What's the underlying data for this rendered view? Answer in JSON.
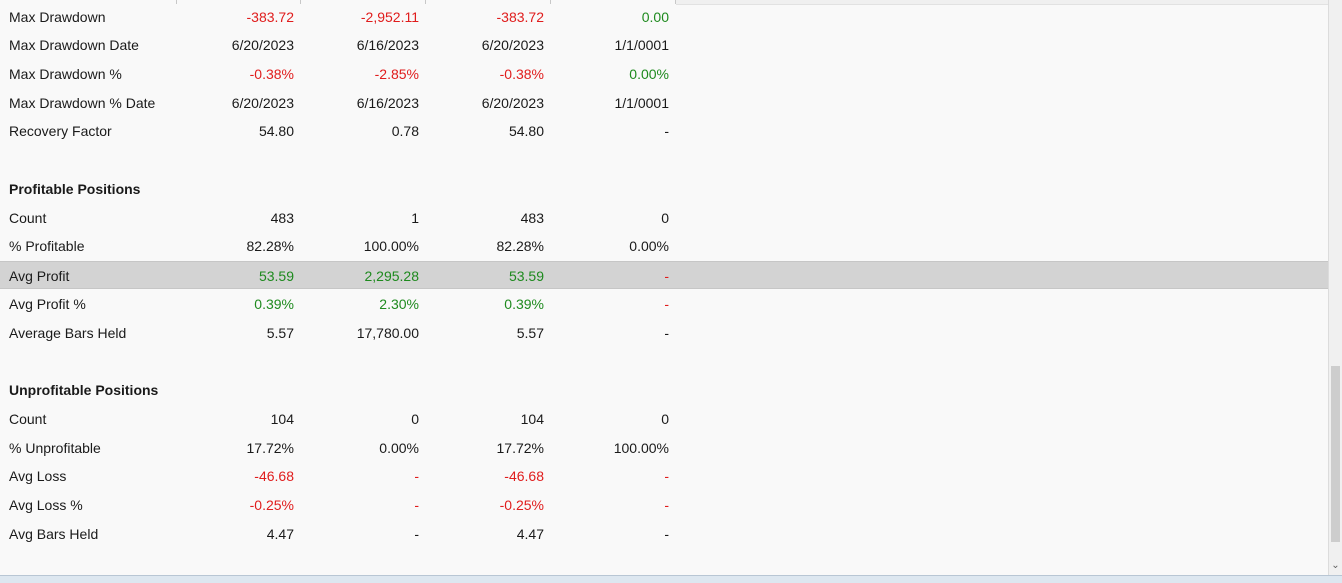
{
  "rows": [
    {
      "label": "Max Drawdown",
      "values": [
        "-383.72",
        "-2,952.11",
        "-383.72",
        "0.00"
      ],
      "tones": [
        "neg",
        "neg",
        "neg",
        "pos"
      ]
    },
    {
      "label": "Max Drawdown Date",
      "values": [
        "6/20/2023",
        "6/16/2023",
        "6/20/2023",
        "1/1/0001"
      ],
      "tones": [
        "neu",
        "neu",
        "neu",
        "neu"
      ]
    },
    {
      "label": "Max Drawdown %",
      "values": [
        "-0.38%",
        "-2.85%",
        "-0.38%",
        "0.00%"
      ],
      "tones": [
        "neg",
        "neg",
        "neg",
        "pos"
      ]
    },
    {
      "label": "Max Drawdown % Date",
      "values": [
        "6/20/2023",
        "6/16/2023",
        "6/20/2023",
        "1/1/0001"
      ],
      "tones": [
        "neu",
        "neu",
        "neu",
        "neu"
      ]
    },
    {
      "label": "Recovery Factor",
      "values": [
        "54.80",
        "0.78",
        "54.80",
        "-"
      ],
      "tones": [
        "neu",
        "neu",
        "neu",
        "neu"
      ]
    },
    {
      "label": "",
      "blank": true
    },
    {
      "label": "Profitable Positions",
      "header": true
    },
    {
      "label": "Count",
      "values": [
        "483",
        "1",
        "483",
        "0"
      ],
      "tones": [
        "neu",
        "neu",
        "neu",
        "neu"
      ]
    },
    {
      "label": "% Profitable",
      "values": [
        "82.28%",
        "100.00%",
        "82.28%",
        "0.00%"
      ],
      "tones": [
        "neu",
        "neu",
        "neu",
        "neu"
      ]
    },
    {
      "label": "Avg Profit",
      "values": [
        "53.59",
        "2,295.28",
        "53.59",
        "-"
      ],
      "tones": [
        "pos",
        "pos",
        "pos",
        "neg"
      ],
      "selected": true
    },
    {
      "label": "Avg Profit %",
      "values": [
        "0.39%",
        "2.30%",
        "0.39%",
        "-"
      ],
      "tones": [
        "pos",
        "pos",
        "pos",
        "neg"
      ]
    },
    {
      "label": "Average Bars Held",
      "values": [
        "5.57",
        "17,780.00",
        "5.57",
        "-"
      ],
      "tones": [
        "neu",
        "neu",
        "neu",
        "neu"
      ]
    },
    {
      "label": "",
      "blank": true
    },
    {
      "label": "Unprofitable Positions",
      "header": true
    },
    {
      "label": "Count",
      "values": [
        "104",
        "0",
        "104",
        "0"
      ],
      "tones": [
        "neu",
        "neu",
        "neu",
        "neu"
      ]
    },
    {
      "label": "% Unprofitable",
      "values": [
        "17.72%",
        "0.00%",
        "17.72%",
        "100.00%"
      ],
      "tones": [
        "neu",
        "neu",
        "neu",
        "neu"
      ]
    },
    {
      "label": "Avg Loss",
      "values": [
        "-46.68",
        "-",
        "-46.68",
        "-"
      ],
      "tones": [
        "neg",
        "neg",
        "neg",
        "neg"
      ]
    },
    {
      "label": "Avg Loss %",
      "values": [
        "-0.25%",
        "-",
        "-0.25%",
        "-"
      ],
      "tones": [
        "neg",
        "neg",
        "neg",
        "neg"
      ]
    },
    {
      "label": "Avg Bars Held",
      "values": [
        "4.47",
        "-",
        "4.47",
        "-"
      ],
      "tones": [
        "neu",
        "neu",
        "neu",
        "neu"
      ]
    }
  ],
  "colors": {
    "negative": "#e01c1c",
    "positive": "#1e8a1e",
    "selected_row": "#d3d3d3"
  },
  "scrollbar": {
    "down_icon": "chevron-down-icon"
  }
}
